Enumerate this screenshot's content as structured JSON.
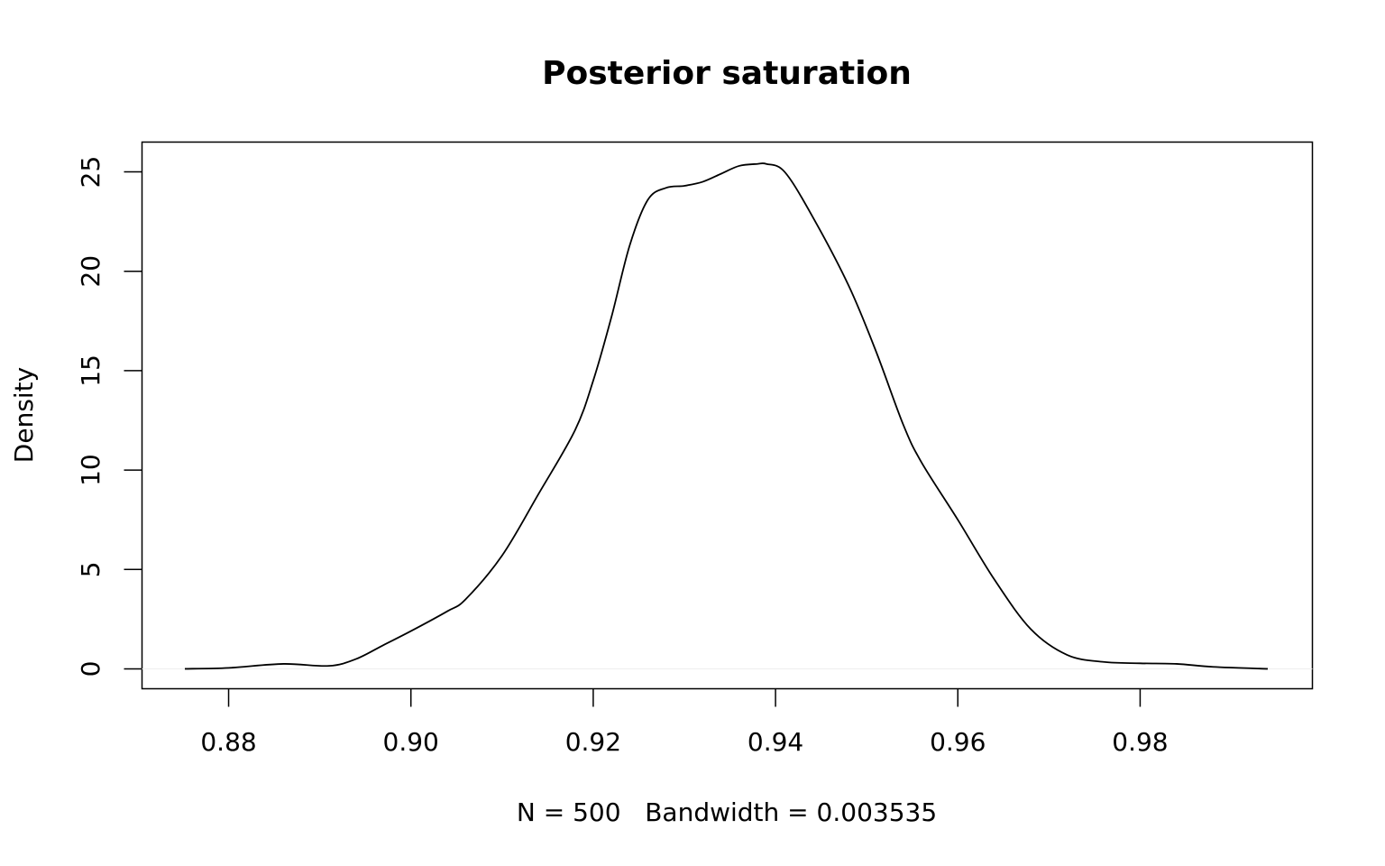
{
  "chart_data": {
    "type": "line",
    "title": "Posterior saturation",
    "xlabel": "N = 500   Bandwidth = 0.003535",
    "ylabel": "Density",
    "xlim": [
      0.8705,
      0.9989
    ],
    "ylim": [
      -1.0,
      26.5
    ],
    "x_ticks": [
      "0.88",
      "0.90",
      "0.92",
      "0.94",
      "0.96",
      "0.98"
    ],
    "y_ticks": [
      "0",
      "5",
      "10",
      "15",
      "20",
      "25"
    ],
    "grid": false,
    "line_color": "#000000",
    "series": [
      {
        "x": [
          0.8752,
          0.88,
          0.886,
          0.891,
          0.894,
          0.897,
          0.9,
          0.904,
          0.906,
          0.91,
          0.914,
          0.918,
          0.92,
          0.922,
          0.924,
          0.926,
          0.928,
          0.93,
          0.932,
          0.934,
          0.936,
          0.938,
          0.939,
          0.941,
          0.944,
          0.948,
          0.951,
          0.954,
          0.956,
          0.96,
          0.964,
          0.968,
          0.972,
          0.976,
          0.98,
          0.984,
          0.988,
          0.994
        ],
        "y": [
          0.0,
          0.05,
          0.25,
          0.15,
          0.5,
          1.2,
          1.9,
          2.9,
          3.5,
          5.7,
          8.8,
          12.0,
          14.5,
          17.7,
          21.3,
          23.6,
          24.2,
          24.3,
          24.5,
          24.9,
          25.3,
          25.4,
          25.4,
          25.0,
          22.8,
          19.3,
          16.0,
          12.3,
          10.4,
          7.5,
          4.5,
          2.0,
          0.7,
          0.35,
          0.28,
          0.25,
          0.1,
          0.0
        ]
      }
    ]
  }
}
